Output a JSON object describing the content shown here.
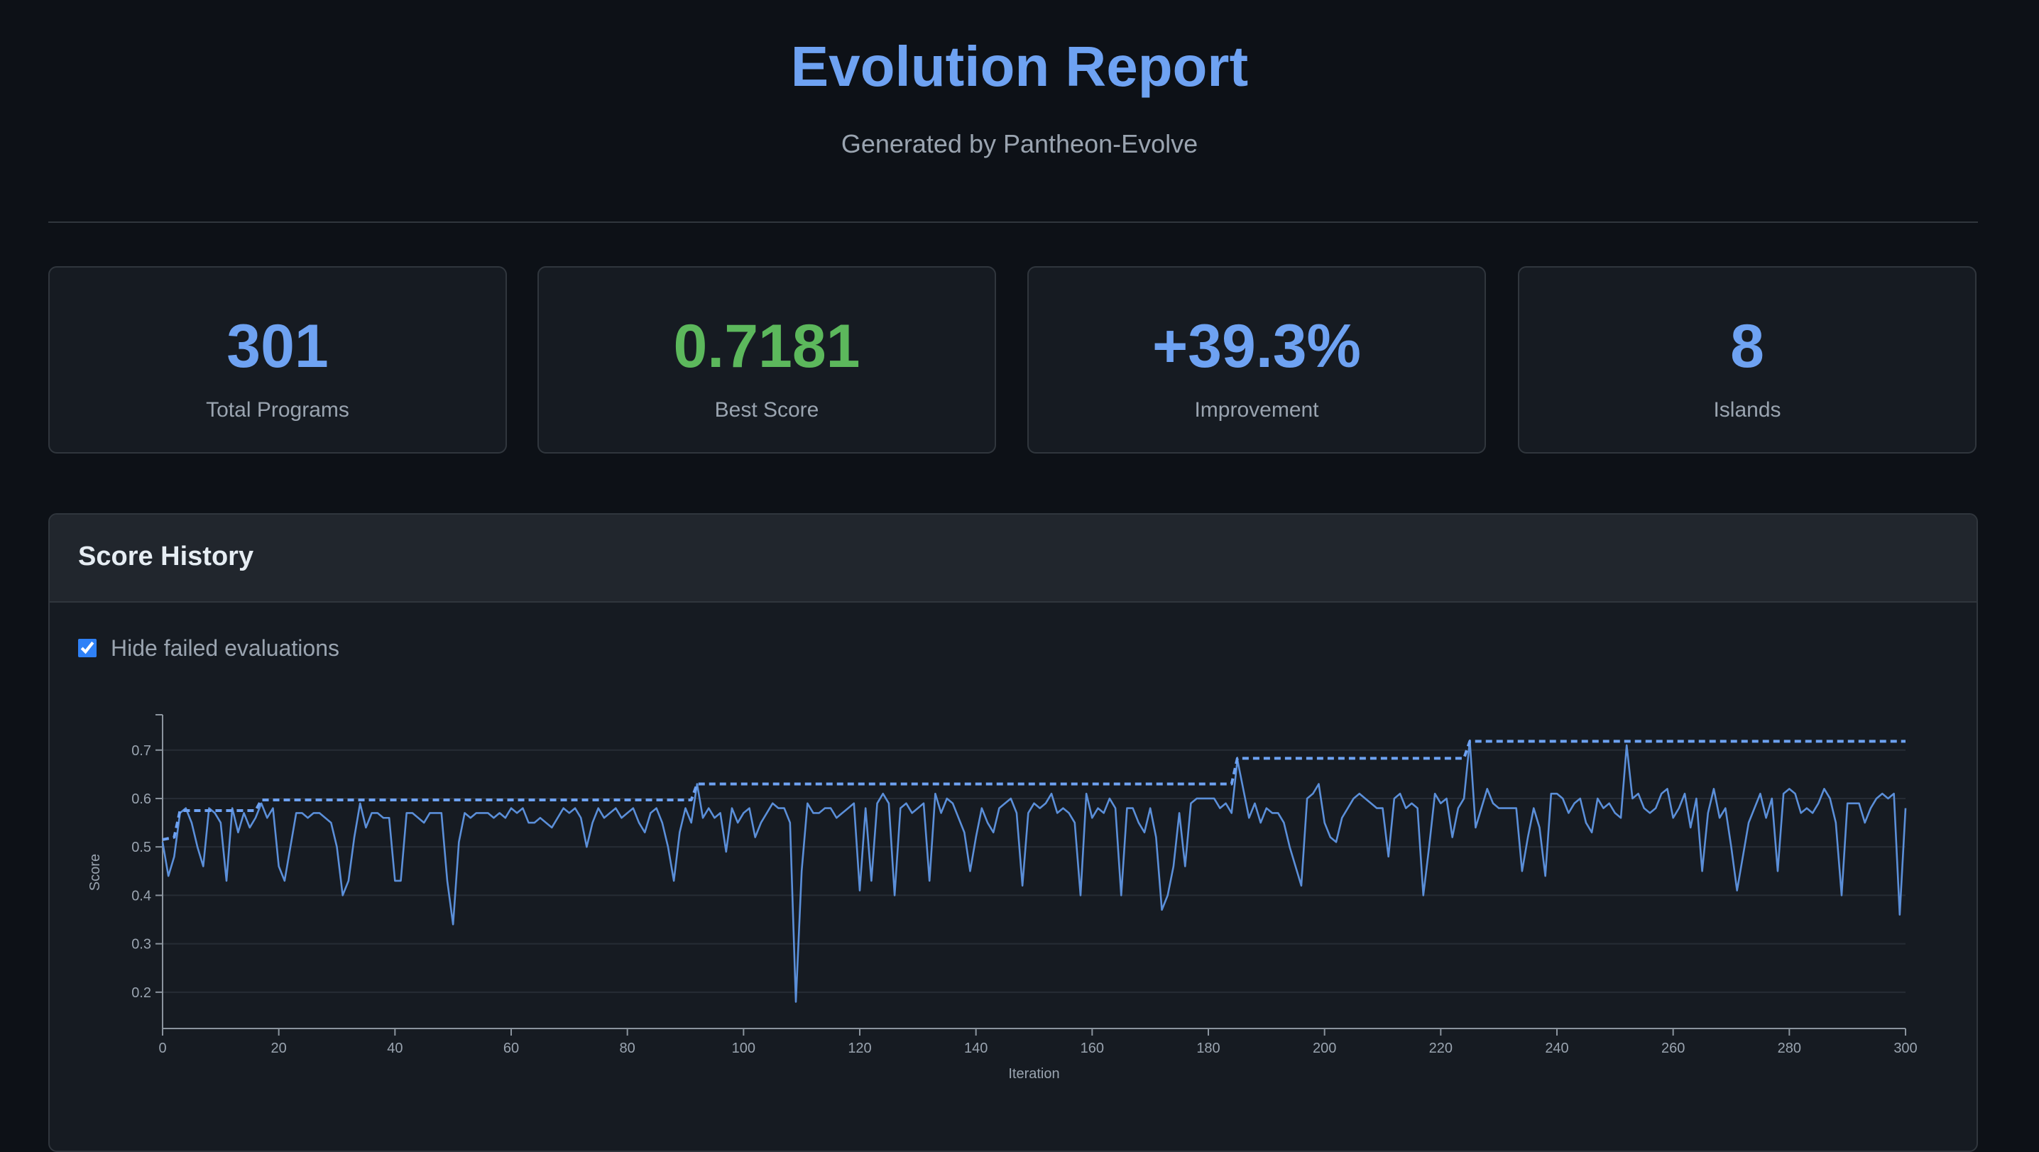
{
  "header": {
    "title": "Evolution Report",
    "subtitle": "Generated by Pantheon-Evolve"
  },
  "stats": [
    {
      "value": 301,
      "label": "Total Programs"
    },
    {
      "value": 0.7181,
      "label": "Best Score",
      "color": "#5cb85c"
    },
    {
      "value": "+39.3%",
      "label": "Improvement"
    },
    {
      "value": 8,
      "label": "Islands"
    }
  ],
  "panel": {
    "title": "Score History",
    "checkbox_label": "Hide failed evaluations",
    "checked": true
  },
  "chart_data": {
    "type": "line",
    "xlabel": "Iteration",
    "ylabel": "Score",
    "xlim": [
      0,
      300
    ],
    "xticks": [
      0,
      20,
      40,
      60,
      80,
      100,
      120,
      140,
      160,
      180,
      200,
      220,
      240,
      260,
      280,
      300
    ],
    "ylim": [
      0.125,
      0.77
    ],
    "yticks": [
      0.2,
      0.3,
      0.4,
      0.5,
      0.6,
      0.7
    ],
    "grid": true,
    "series": [
      {
        "color": "#5b8fd9",
        "style": "solid",
        "x": [
          0,
          1,
          2,
          3,
          4,
          5,
          6,
          7,
          8,
          9,
          10,
          11,
          12,
          13,
          14,
          15,
          16,
          17,
          18,
          19,
          20,
          21,
          22,
          23,
          24,
          25,
          26,
          27,
          28,
          29,
          30,
          31,
          32,
          33,
          34,
          35,
          36,
          37,
          38,
          39,
          40,
          41,
          42,
          43,
          44,
          45,
          46,
          47,
          48,
          49,
          50,
          51,
          52,
          53,
          54,
          55,
          56,
          57,
          58,
          59,
          60,
          61,
          62,
          63,
          64,
          65,
          66,
          67,
          68,
          69,
          70,
          71,
          72,
          73,
          74,
          75,
          76,
          77,
          78,
          79,
          80,
          81,
          82,
          83,
          84,
          85,
          86,
          87,
          88,
          89,
          90,
          91,
          92,
          93,
          94,
          95,
          96,
          97,
          98,
          99,
          100,
          101,
          102,
          103,
          104,
          105,
          106,
          107,
          108,
          109,
          110,
          111,
          112,
          113,
          114,
          115,
          116,
          117,
          118,
          119,
          120,
          121,
          122,
          123,
          124,
          125,
          126,
          127,
          128,
          129,
          130,
          131,
          132,
          133,
          134,
          135,
          136,
          137,
          138,
          139,
          140,
          141,
          142,
          143,
          144,
          145,
          146,
          147,
          148,
          149,
          150,
          151,
          152,
          153,
          154,
          155,
          156,
          157,
          158,
          159,
          160,
          161,
          162,
          163,
          164,
          165,
          166,
          167,
          168,
          169,
          170,
          171,
          172,
          173,
          174,
          175,
          176,
          177,
          178,
          179,
          180,
          181,
          182,
          183,
          184,
          185,
          186,
          187,
          188,
          189,
          190,
          191,
          192,
          193,
          194,
          195,
          196,
          197,
          198,
          199,
          200,
          201,
          202,
          203,
          204,
          205,
          206,
          207,
          208,
          209,
          210,
          211,
          212,
          213,
          214,
          215,
          216,
          217,
          218,
          219,
          220,
          221,
          222,
          223,
          224,
          225,
          226,
          227,
          228,
          229,
          230,
          231,
          232,
          233,
          234,
          235,
          236,
          237,
          238,
          239,
          240,
          241,
          242,
          243,
          244,
          245,
          246,
          247,
          248,
          249,
          250,
          251,
          252,
          253,
          254,
          255,
          256,
          257,
          258,
          259,
          260,
          261,
          262,
          263,
          264,
          265,
          266,
          267,
          268,
          269,
          270,
          271,
          272,
          273,
          274,
          275,
          276,
          277,
          278,
          279,
          280,
          281,
          282,
          283,
          284,
          285,
          286,
          287,
          288,
          289,
          290,
          291,
          292,
          293,
          294,
          295,
          296,
          297,
          298,
          299,
          300
        ],
        "values": [
          0.51,
          0.44,
          0.48,
          0.57,
          0.58,
          0.55,
          0.5,
          0.46,
          0.58,
          0.57,
          0.55,
          0.43,
          0.58,
          0.53,
          0.57,
          0.54,
          0.56,
          0.59,
          0.56,
          0.58,
          0.46,
          0.43,
          0.5,
          0.57,
          0.57,
          0.56,
          0.57,
          0.57,
          0.56,
          0.55,
          0.5,
          0.4,
          0.43,
          0.52,
          0.59,
          0.54,
          0.57,
          0.57,
          0.56,
          0.56,
          0.43,
          0.43,
          0.57,
          0.57,
          0.56,
          0.55,
          0.57,
          0.57,
          0.57,
          0.43,
          0.34,
          0.51,
          0.57,
          0.56,
          0.57,
          0.57,
          0.57,
          0.56,
          0.57,
          0.56,
          0.58,
          0.57,
          0.58,
          0.55,
          0.55,
          0.56,
          0.55,
          0.54,
          0.56,
          0.58,
          0.57,
          0.58,
          0.56,
          0.5,
          0.55,
          0.58,
          0.56,
          0.57,
          0.58,
          0.56,
          0.57,
          0.58,
          0.55,
          0.53,
          0.57,
          0.58,
          0.55,
          0.5,
          0.43,
          0.53,
          0.58,
          0.55,
          0.63,
          0.56,
          0.58,
          0.56,
          0.57,
          0.49,
          0.58,
          0.55,
          0.57,
          0.58,
          0.52,
          0.55,
          0.57,
          0.59,
          0.58,
          0.58,
          0.55,
          0.18,
          0.45,
          0.59,
          0.57,
          0.57,
          0.58,
          0.58,
          0.56,
          0.57,
          0.58,
          0.59,
          0.41,
          0.58,
          0.43,
          0.59,
          0.61,
          0.59,
          0.4,
          0.58,
          0.59,
          0.57,
          0.58,
          0.59,
          0.43,
          0.61,
          0.57,
          0.6,
          0.59,
          0.56,
          0.53,
          0.45,
          0.52,
          0.58,
          0.55,
          0.53,
          0.58,
          0.59,
          0.6,
          0.57,
          0.42,
          0.57,
          0.59,
          0.58,
          0.59,
          0.61,
          0.57,
          0.58,
          0.57,
          0.55,
          0.4,
          0.61,
          0.56,
          0.58,
          0.57,
          0.6,
          0.58,
          0.4,
          0.58,
          0.58,
          0.55,
          0.53,
          0.58,
          0.52,
          0.37,
          0.4,
          0.46,
          0.57,
          0.46,
          0.59,
          0.6,
          0.6,
          0.6,
          0.6,
          0.58,
          0.59,
          0.57,
          0.68,
          0.62,
          0.56,
          0.59,
          0.55,
          0.58,
          0.57,
          0.57,
          0.55,
          0.5,
          0.46,
          0.42,
          0.6,
          0.61,
          0.63,
          0.55,
          0.52,
          0.51,
          0.56,
          0.58,
          0.6,
          0.61,
          0.6,
          0.59,
          0.58,
          0.58,
          0.48,
          0.6,
          0.61,
          0.58,
          0.59,
          0.58,
          0.4,
          0.5,
          0.61,
          0.59,
          0.6,
          0.52,
          0.58,
          0.6,
          0.72,
          0.54,
          0.58,
          0.62,
          0.59,
          0.58,
          0.58,
          0.58,
          0.58,
          0.45,
          0.52,
          0.58,
          0.54,
          0.44,
          0.61,
          0.61,
          0.6,
          0.57,
          0.59,
          0.6,
          0.55,
          0.53,
          0.6,
          0.58,
          0.59,
          0.57,
          0.56,
          0.71,
          0.6,
          0.61,
          0.58,
          0.57,
          0.58,
          0.61,
          0.62,
          0.56,
          0.58,
          0.61,
          0.54,
          0.6,
          0.45,
          0.57,
          0.62,
          0.56,
          0.58,
          0.5,
          0.41,
          0.48,
          0.55,
          0.58,
          0.61,
          0.56,
          0.6,
          0.45,
          0.61,
          0.62,
          0.61,
          0.57,
          0.58,
          0.57,
          0.59,
          0.62,
          0.6,
          0.55,
          0.4,
          0.59,
          0.59,
          0.59,
          0.55,
          0.58,
          0.6,
          0.61,
          0.6,
          0.61,
          0.36,
          0.58
        ]
      },
      {
        "color": "#6ea2f2",
        "style": "dashed",
        "x": [
          0,
          2,
          3,
          16,
          17,
          91,
          92,
          184,
          185,
          224,
          225,
          300
        ],
        "values": [
          0.515,
          0.52,
          0.575,
          0.575,
          0.597,
          0.597,
          0.63,
          0.63,
          0.683,
          0.683,
          0.7181,
          0.7181
        ]
      }
    ]
  }
}
